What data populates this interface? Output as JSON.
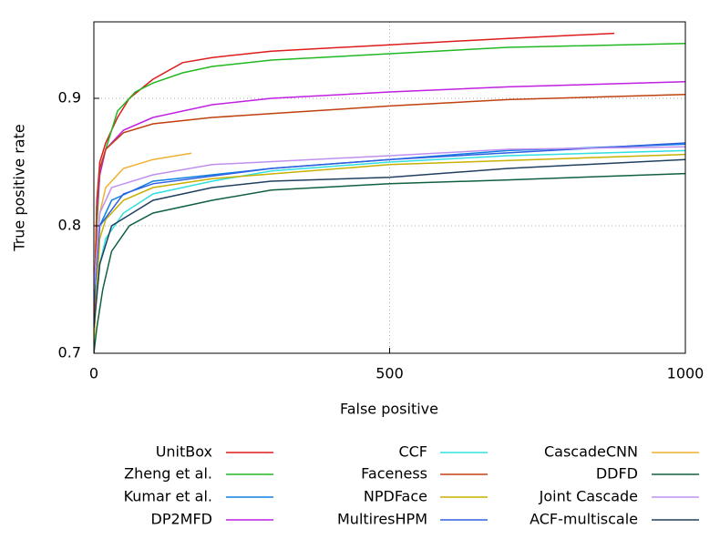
{
  "chart_data": {
    "type": "line",
    "xlabel": "False positive",
    "ylabel": "True positive rate",
    "xlim": [
      0,
      1000
    ],
    "ylim": [
      0.7,
      0.96
    ],
    "xticks": [
      0,
      500,
      1000
    ],
    "yticks": [
      0.7,
      0.8,
      0.9
    ],
    "grid": true,
    "series": [
      {
        "name": "UnitBox",
        "color": "#dd1c1c",
        "x": [
          0,
          2,
          5,
          10,
          20,
          40,
          60,
          100,
          150,
          200,
          300,
          500,
          700,
          880
        ],
        "values": [
          0.7,
          0.76,
          0.82,
          0.85,
          0.865,
          0.885,
          0.9,
          0.915,
          0.928,
          0.932,
          0.937,
          0.942,
          0.947,
          0.951
        ]
      },
      {
        "name": "Zheng et al.",
        "color": "#22b822",
        "x": [
          0,
          5,
          10,
          20,
          40,
          70,
          100,
          150,
          200,
          300,
          500,
          700,
          1000
        ],
        "values": [
          0.7,
          0.8,
          0.84,
          0.86,
          0.89,
          0.905,
          0.912,
          0.92,
          0.925,
          0.93,
          0.935,
          0.94,
          0.943
        ]
      },
      {
        "name": "Kumar et al.",
        "color": "#1080e0",
        "x": [
          0,
          10,
          30,
          100,
          200,
          300,
          500,
          700,
          1000
        ],
        "values": [
          0.74,
          0.8,
          0.82,
          0.835,
          0.84,
          0.845,
          0.852,
          0.859,
          0.864
        ]
      },
      {
        "name": "DP2MFD",
        "color": "#c020e0",
        "x": [
          0,
          5,
          10,
          20,
          50,
          100,
          200,
          300,
          500,
          700,
          1000
        ],
        "values": [
          0.72,
          0.81,
          0.84,
          0.86,
          0.875,
          0.885,
          0.895,
          0.9,
          0.905,
          0.909,
          0.913
        ]
      },
      {
        "name": "CCF",
        "color": "#30e0e0",
        "x": [
          0,
          10,
          20,
          50,
          100,
          200,
          300,
          500,
          700,
          1000
        ],
        "values": [
          0.72,
          0.77,
          0.79,
          0.81,
          0.825,
          0.835,
          0.843,
          0.85,
          0.855,
          0.859
        ]
      },
      {
        "name": "Faceness",
        "color": "#c04010",
        "x": [
          0,
          5,
          10,
          20,
          50,
          100,
          200,
          300,
          500,
          700,
          1000
        ],
        "values": [
          0.72,
          0.82,
          0.845,
          0.86,
          0.873,
          0.88,
          0.885,
          0.888,
          0.894,
          0.899,
          0.903
        ]
      },
      {
        "name": "NPDFace",
        "color": "#c8b000",
        "x": [
          0,
          10,
          20,
          50,
          100,
          200,
          500,
          1000
        ],
        "values": [
          0.71,
          0.79,
          0.805,
          0.82,
          0.83,
          0.837,
          0.848,
          0.856
        ]
      },
      {
        "name": "MultiresHPM",
        "color": "#3060e0",
        "x": [
          0,
          10,
          50,
          100,
          300,
          500,
          1000
        ],
        "values": [
          0.74,
          0.8,
          0.825,
          0.833,
          0.845,
          0.852,
          0.865
        ]
      },
      {
        "name": "CascadeCNN",
        "color": "#f0b030",
        "x": [
          0,
          10,
          20,
          50,
          100,
          165
        ],
        "values": [
          0.75,
          0.81,
          0.83,
          0.845,
          0.852,
          0.857
        ]
      },
      {
        "name": "DDFD",
        "color": "#106040",
        "x": [
          0,
          5,
          15,
          30,
          60,
          100,
          200,
          300,
          500,
          700,
          1000
        ],
        "values": [
          0.7,
          0.72,
          0.75,
          0.78,
          0.8,
          0.81,
          0.82,
          0.828,
          0.833,
          0.836,
          0.841
        ]
      },
      {
        "name": "Joint Cascade",
        "color": "#c090f0",
        "x": [
          0,
          10,
          30,
          100,
          200,
          500,
          700,
          1000
        ],
        "values": [
          0.75,
          0.81,
          0.83,
          0.84,
          0.848,
          0.855,
          0.86,
          0.862
        ]
      },
      {
        "name": "ACF-multiscale",
        "color": "#204060",
        "x": [
          0,
          10,
          30,
          100,
          200,
          300,
          500,
          700,
          1000
        ],
        "values": [
          0.72,
          0.77,
          0.8,
          0.82,
          0.83,
          0.835,
          0.838,
          0.845,
          0.852
        ]
      }
    ]
  }
}
